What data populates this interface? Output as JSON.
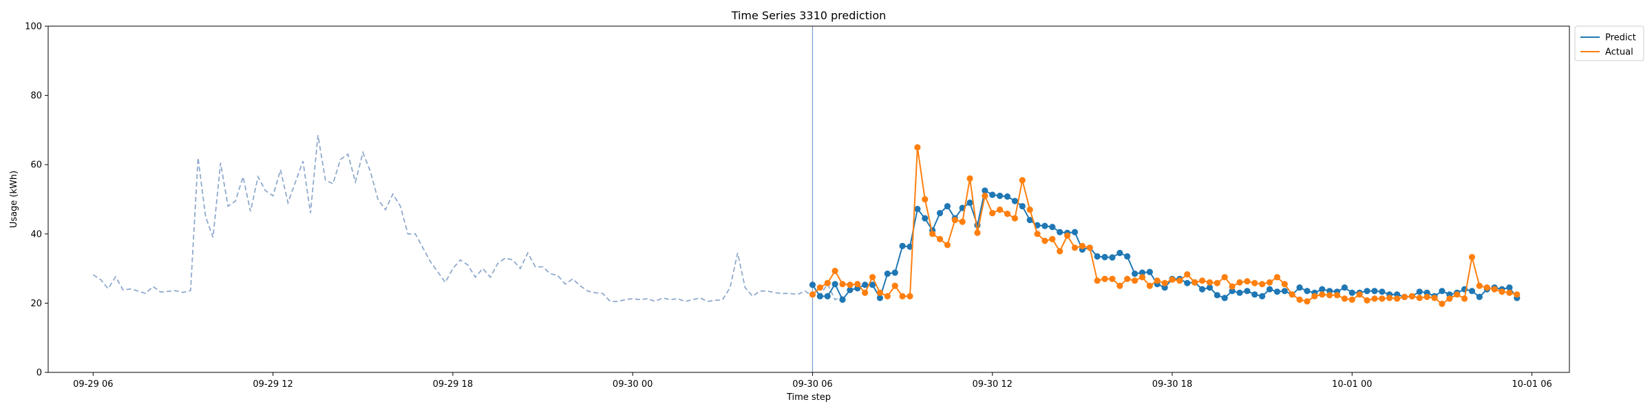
{
  "chart_data": {
    "type": "line",
    "title": "Time Series 3310 prediction",
    "xlabel": "Time step",
    "ylabel": "Usage (kWh)",
    "ylim": [
      0,
      100
    ],
    "yticks": [
      0,
      20,
      40,
      60,
      80,
      100
    ],
    "xlim": [
      "2020-09-29 04:30",
      "2020-10-01 07:15"
    ],
    "xticks": [
      {
        "t": "2020-09-29 06:00",
        "label": "09-29 06"
      },
      {
        "t": "2020-09-29 12:00",
        "label": "09-29 12"
      },
      {
        "t": "2020-09-29 18:00",
        "label": "09-29 18"
      },
      {
        "t": "2020-09-30 00:00",
        "label": "09-30 00"
      },
      {
        "t": "2020-09-30 06:00",
        "label": "09-30 06"
      },
      {
        "t": "2020-09-30 12:00",
        "label": "09-30 12"
      },
      {
        "t": "2020-09-30 18:00",
        "label": "09-30 18"
      },
      {
        "t": "2020-10-01 00:00",
        "label": "10-01 00"
      },
      {
        "t": "2020-10-01 06:00",
        "label": "10-01 06"
      }
    ],
    "grid": false,
    "legend_position": "upper-right-outside",
    "forecast_start": "2020-09-30 06:00",
    "interval_minutes": 15,
    "colors": {
      "history": "#8fa9cc",
      "predict": "#1f77b4",
      "actual": "#ff7f0e",
      "vline": "#7f9fd0"
    },
    "history": {
      "start": "2020-09-29 06:00",
      "values": [
        28.2,
        26.8,
        24.2,
        27.6,
        23.8,
        24.1,
        23.5,
        22.8,
        24.8,
        23.2,
        23.4,
        23.6,
        23.1,
        23.6,
        62.0,
        45.0,
        39.0,
        60.5,
        48.0,
        49.5,
        56.5,
        46.5,
        56.5,
        52.5,
        51.0,
        58.5,
        49.0,
        55.0,
        61.0,
        46.0,
        68.5,
        55.5,
        54.5,
        61.5,
        63.0,
        55.0,
        63.5,
        58.0,
        50.0,
        47.0,
        51.5,
        48.0,
        40.0,
        40.0,
        36.0,
        32.0,
        29.0,
        26.0,
        30.0,
        32.5,
        31.0,
        27.5,
        30.0,
        27.5,
        31.5,
        33.0,
        32.5,
        30.0,
        34.5,
        30.5,
        30.5,
        28.5,
        28.0,
        25.5,
        27.0,
        25.0,
        23.5,
        23.0,
        22.8,
        20.5,
        20.5,
        21.0,
        21.3,
        21.0,
        21.3,
        20.5,
        21.5,
        21.0,
        21.3,
        20.5,
        21.0,
        21.5,
        20.5,
        20.8,
        21.0,
        24.5,
        34.5,
        24.5,
        22.0,
        23.5,
        23.5,
        23.0,
        22.8,
        22.8,
        22.5,
        23.5,
        22.0,
        22.3,
        25.5,
        21.0,
        22.0
      ]
    },
    "series": [
      {
        "name": "Predict",
        "start": "2020-09-30 06:00",
        "values": [
          25.3,
          22.0,
          22.0,
          25.5,
          21.0,
          23.8,
          24.3,
          25.3,
          25.3,
          21.5,
          28.5,
          28.8,
          36.5,
          36.3,
          47.2,
          44.5,
          41.0,
          46.0,
          48.0,
          44.5,
          47.5,
          49.0,
          42.5,
          52.5,
          51.3,
          51.0,
          50.8,
          49.5,
          48.0,
          44.0,
          42.5,
          42.3,
          42.0,
          40.5,
          40.3,
          40.5,
          35.5,
          36.0,
          33.5,
          33.3,
          33.2,
          34.5,
          33.5,
          28.5,
          28.8,
          29.0,
          25.5,
          24.5,
          27.0,
          27.0,
          25.8,
          26.0,
          24.0,
          24.5,
          22.3,
          21.5,
          23.5,
          23.0,
          23.5,
          22.5,
          22.0,
          24.0,
          23.3,
          23.5,
          22.5,
          24.5,
          23.5,
          23.0,
          24.0,
          23.5,
          23.3,
          24.5,
          23.0,
          23.0,
          23.5,
          23.5,
          23.3,
          22.5,
          22.5,
          21.8,
          22.0,
          23.3,
          23.0,
          22.0,
          23.5,
          22.5,
          23.0,
          24.0,
          23.5,
          21.8,
          24.0,
          24.5,
          24.0,
          24.5,
          21.5
        ]
      },
      {
        "name": "Actual",
        "start": "2020-09-30 06:00",
        "values": [
          22.5,
          24.5,
          25.8,
          29.3,
          25.5,
          25.3,
          25.5,
          23.0,
          27.5,
          23.0,
          22.0,
          25.0,
          22.0,
          22.0,
          65.0,
          50.0,
          40.0,
          38.5,
          36.8,
          44.0,
          43.5,
          56.0,
          40.3,
          51.0,
          46.0,
          47.0,
          45.8,
          44.5,
          55.5,
          47.0,
          40.0,
          38.0,
          38.5,
          35.0,
          39.5,
          36.0,
          36.5,
          36.0,
          26.5,
          27.0,
          27.0,
          25.0,
          27.0,
          26.5,
          27.5,
          25.0,
          26.5,
          25.8,
          26.8,
          26.5,
          28.3,
          26.0,
          26.5,
          26.0,
          25.8,
          27.5,
          24.8,
          26.0,
          26.3,
          25.8,
          25.5,
          26.0,
          27.5,
          25.5,
          22.5,
          21.0,
          20.5,
          22.0,
          22.5,
          22.3,
          22.3,
          21.3,
          21.0,
          22.5,
          20.8,
          21.3,
          21.3,
          21.5,
          21.3,
          21.8,
          22.0,
          21.5,
          21.8,
          21.5,
          19.8,
          21.3,
          22.5,
          21.3,
          33.3,
          25.0,
          24.5,
          24.0,
          23.3,
          23.0,
          22.5
        ]
      }
    ]
  }
}
